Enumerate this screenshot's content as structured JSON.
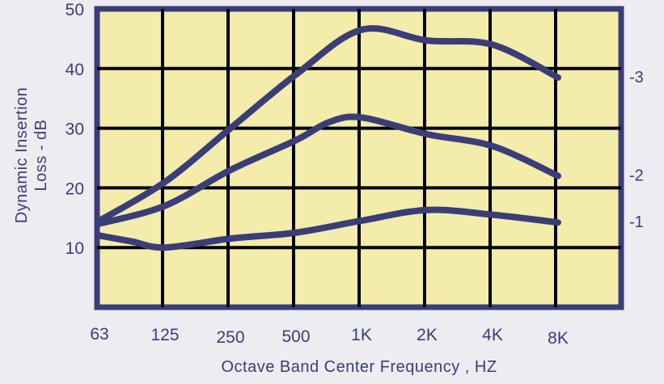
{
  "chart_data": {
    "type": "line",
    "title": "",
    "xlabel": "Octave Band Center Frequency , HZ",
    "ylabel_lines": [
      "Dynamic Insertion",
      "Loss - dB"
    ],
    "categories": [
      "63",
      "125",
      "250",
      "500",
      "1K",
      "2K",
      "4K",
      "8K"
    ],
    "yticks": [
      "10",
      "20",
      "30",
      "40",
      "50"
    ],
    "ylim": [
      0,
      50
    ],
    "grid": true,
    "legend": "none",
    "colors": {
      "plot_background": "#f3ecaa",
      "frame": "#3b3d78",
      "grid": "#000000",
      "series": "#3b3d78",
      "page_background": "#ececf1"
    },
    "series": [
      {
        "name": "-1",
        "points": [
          [
            0,
            12
          ],
          [
            0.5,
            11
          ],
          [
            1,
            10
          ],
          [
            2,
            11.5
          ],
          [
            3,
            12.5
          ],
          [
            4,
            14.5
          ],
          [
            5,
            16.3
          ],
          [
            6,
            15.5
          ],
          [
            7,
            14.2
          ]
        ]
      },
      {
        "name": "-2",
        "points": [
          [
            0,
            14
          ],
          [
            1,
            17
          ],
          [
            2,
            23
          ],
          [
            3,
            28
          ],
          [
            3.5,
            31
          ],
          [
            4,
            31.8
          ],
          [
            5,
            29
          ],
          [
            6,
            27
          ],
          [
            7,
            22
          ]
        ]
      },
      {
        "name": "-3",
        "points": [
          [
            0,
            14.5
          ],
          [
            1,
            21
          ],
          [
            2,
            30
          ],
          [
            3,
            39
          ],
          [
            4,
            46.5
          ],
          [
            5,
            44.7
          ],
          [
            6,
            44
          ],
          [
            7,
            38.5
          ]
        ]
      }
    ]
  }
}
